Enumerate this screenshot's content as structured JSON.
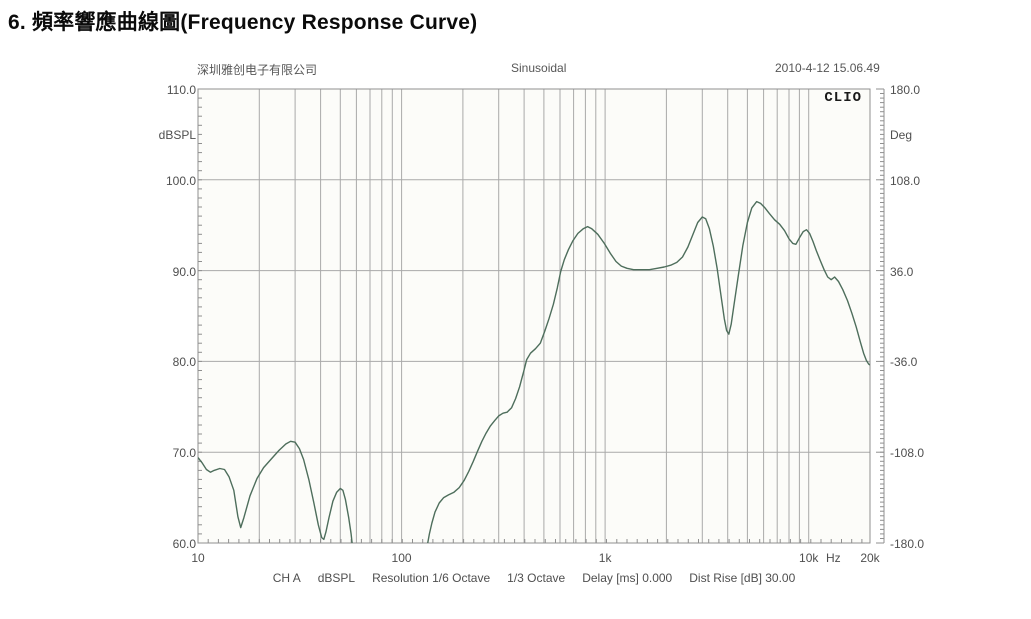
{
  "title": "6. 頻率響應曲線圖(Frequency Response Curve)",
  "chart_header": {
    "company": "深圳雅创电子有限公司",
    "signal": "Sinusoidal",
    "datetime": "2010-4-12 15.06.49"
  },
  "brand": "CLIO",
  "footer": {
    "items": [
      "CH A",
      "dBSPL",
      "Resolution 1/6 Octave",
      "1/3 Octave",
      "Delay [ms] 0.000",
      "Dist Rise [dB] 30.00"
    ]
  },
  "colors": {
    "curve": "#4e6e5c",
    "grid": "#a9a9a9",
    "border": "#8f8f8f",
    "tick": "#8f8f8f",
    "plot_bg": "#fcfcf9"
  },
  "chart_data": {
    "type": "line",
    "title": "Frequency Response Curve",
    "grid": true,
    "x_axis": {
      "scale": "log",
      "min": 10,
      "max": 20000,
      "unit": "Hz",
      "tick_labels": [
        {
          "f": 10,
          "label": "10"
        },
        {
          "f": 100,
          "label": "100"
        },
        {
          "f": 1000,
          "label": "1k"
        },
        {
          "f": 10000,
          "label": "10k"
        },
        {
          "f": 20000,
          "label": "20k"
        }
      ],
      "gridlines": "log decades 2-9 of 10,100,1k,10k"
    },
    "y_left": {
      "label": "dBSPL",
      "min": 60,
      "max": 110,
      "ticks": [
        110,
        100,
        90,
        80,
        70,
        60
      ]
    },
    "y_right": {
      "label": "Deg",
      "min": -180,
      "max": 180,
      "ticks": [
        180,
        108,
        36,
        -36,
        -108,
        -180
      ]
    },
    "series": [
      {
        "name": "CH A dBSPL (magnitude)",
        "color": "#4e6e5c",
        "points": [
          [
            10,
            69.4
          ],
          [
            10.5,
            68.8
          ],
          [
            11,
            68.1
          ],
          [
            11.5,
            67.8
          ],
          [
            12,
            68.0
          ],
          [
            12.8,
            68.2
          ],
          [
            13.5,
            68.1
          ],
          [
            14.2,
            67.3
          ],
          [
            15,
            65.8
          ],
          [
            15.7,
            62.9
          ],
          [
            16.2,
            61.7
          ],
          [
            16.8,
            62.8
          ],
          [
            18,
            65.2
          ],
          [
            19.5,
            67.1
          ],
          [
            21,
            68.3
          ],
          [
            23,
            69.3
          ],
          [
            25,
            70.2
          ],
          [
            27,
            70.9
          ],
          [
            28.5,
            71.2
          ],
          [
            30,
            71.1
          ],
          [
            31.5,
            70.4
          ],
          [
            33,
            69.2
          ],
          [
            35,
            67.0
          ],
          [
            37,
            64.5
          ],
          [
            39,
            62.0
          ],
          [
            40.5,
            60.6
          ],
          [
            41.5,
            60.4
          ],
          [
            42.5,
            61.2
          ],
          [
            44,
            62.8
          ],
          [
            46,
            64.6
          ],
          [
            48,
            65.6
          ],
          [
            50,
            66.0
          ],
          [
            51.5,
            65.8
          ],
          [
            53,
            64.8
          ],
          [
            55,
            62.8
          ],
          [
            56.5,
            61.0
          ],
          [
            57.5,
            59.5
          ],
          [
            58.5,
            58.6
          ],
          [
            131,
            58.6
          ],
          [
            134,
            59.8
          ],
          [
            137,
            61.0
          ],
          [
            141,
            62.2
          ],
          [
            146,
            63.4
          ],
          [
            153,
            64.4
          ],
          [
            161,
            65.0
          ],
          [
            170,
            65.3
          ],
          [
            181,
            65.6
          ],
          [
            192,
            66.1
          ],
          [
            203,
            66.9
          ],
          [
            214,
            67.9
          ],
          [
            225,
            69.0
          ],
          [
            236,
            70.1
          ],
          [
            248,
            71.2
          ],
          [
            260,
            72.1
          ],
          [
            273,
            72.9
          ],
          [
            287,
            73.5
          ],
          [
            300,
            74.0
          ],
          [
            315,
            74.3
          ],
          [
            330,
            74.4
          ],
          [
            347,
            74.9
          ],
          [
            363,
            75.9
          ],
          [
            380,
            77.2
          ],
          [
            398,
            78.9
          ],
          [
            412,
            80.2
          ],
          [
            430,
            80.9
          ],
          [
            455,
            81.4
          ],
          [
            480,
            82.0
          ],
          [
            505,
            83.3
          ],
          [
            530,
            84.7
          ],
          [
            557,
            86.3
          ],
          [
            582,
            88.1
          ],
          [
            605,
            89.9
          ],
          [
            630,
            91.2
          ],
          [
            660,
            92.3
          ],
          [
            695,
            93.3
          ],
          [
            735,
            94.1
          ],
          [
            780,
            94.6
          ],
          [
            820,
            94.85
          ],
          [
            860,
            94.6
          ],
          [
            920,
            94.0
          ],
          [
            990,
            93.0
          ],
          [
            1060,
            91.9
          ],
          [
            1130,
            91.0
          ],
          [
            1200,
            90.5
          ],
          [
            1280,
            90.25
          ],
          [
            1380,
            90.1
          ],
          [
            1500,
            90.1
          ],
          [
            1650,
            90.1
          ],
          [
            1800,
            90.25
          ],
          [
            1950,
            90.4
          ],
          [
            2100,
            90.6
          ],
          [
            2250,
            90.9
          ],
          [
            2400,
            91.5
          ],
          [
            2550,
            92.6
          ],
          [
            2700,
            94.0
          ],
          [
            2850,
            95.3
          ],
          [
            3000,
            95.9
          ],
          [
            3120,
            95.7
          ],
          [
            3250,
            94.6
          ],
          [
            3400,
            92.7
          ],
          [
            3550,
            90.2
          ],
          [
            3700,
            87.4
          ],
          [
            3850,
            84.7
          ],
          [
            3950,
            83.4
          ],
          [
            4050,
            83.0
          ],
          [
            4160,
            84.1
          ],
          [
            4300,
            86.3
          ],
          [
            4500,
            89.3
          ],
          [
            4750,
            92.8
          ],
          [
            5000,
            95.3
          ],
          [
            5250,
            96.9
          ],
          [
            5550,
            97.6
          ],
          [
            5800,
            97.4
          ],
          [
            6100,
            96.9
          ],
          [
            6400,
            96.3
          ],
          [
            6800,
            95.6
          ],
          [
            7200,
            95.1
          ],
          [
            7600,
            94.4
          ],
          [
            8000,
            93.5
          ],
          [
            8350,
            93.0
          ],
          [
            8650,
            92.9
          ],
          [
            9000,
            93.6
          ],
          [
            9400,
            94.3
          ],
          [
            9750,
            94.5
          ],
          [
            10100,
            94.1
          ],
          [
            10500,
            93.2
          ],
          [
            10900,
            92.2
          ],
          [
            11400,
            91.1
          ],
          [
            11900,
            90.1
          ],
          [
            12400,
            89.3
          ],
          [
            12900,
            89.0
          ],
          [
            13400,
            89.3
          ],
          [
            14000,
            88.8
          ],
          [
            14700,
            87.9
          ],
          [
            15500,
            86.7
          ],
          [
            16300,
            85.3
          ],
          [
            17100,
            83.8
          ],
          [
            17900,
            82.2
          ],
          [
            18600,
            80.9
          ],
          [
            19200,
            80.1
          ],
          [
            19700,
            79.7
          ],
          [
            20000,
            79.6
          ]
        ]
      }
    ]
  }
}
